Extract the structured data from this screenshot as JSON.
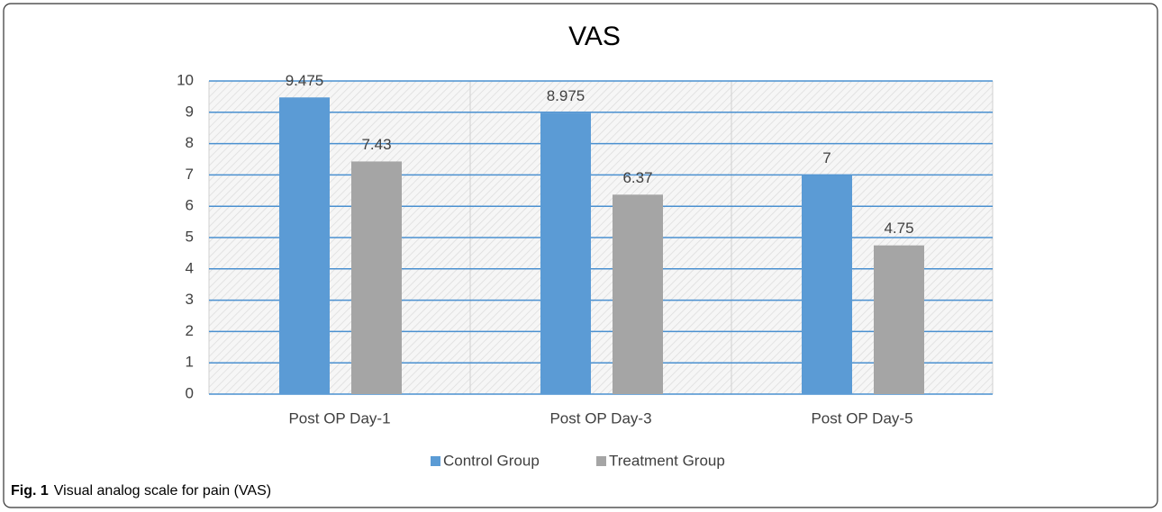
{
  "chart_data": {
    "type": "bar",
    "title": "VAS",
    "categories": [
      "Post OP Day-1",
      "Post OP Day-3",
      "Post OP Day-5"
    ],
    "series": [
      {
        "name": "Control Group",
        "color": "#5b9bd5",
        "values": [
          9.475,
          8.975,
          7
        ]
      },
      {
        "name": "Treatment Group",
        "color": "#a5a5a5",
        "values": [
          7.43,
          6.37,
          4.75
        ]
      }
    ],
    "ylim": [
      0,
      10
    ],
    "yticks": [
      0,
      1,
      2,
      3,
      4,
      5,
      6,
      7,
      8,
      9,
      10
    ],
    "grid": true,
    "legend": "bottom"
  },
  "caption": {
    "label": "Fig. 1",
    "text": "Visual analog scale for pain (VAS)"
  }
}
